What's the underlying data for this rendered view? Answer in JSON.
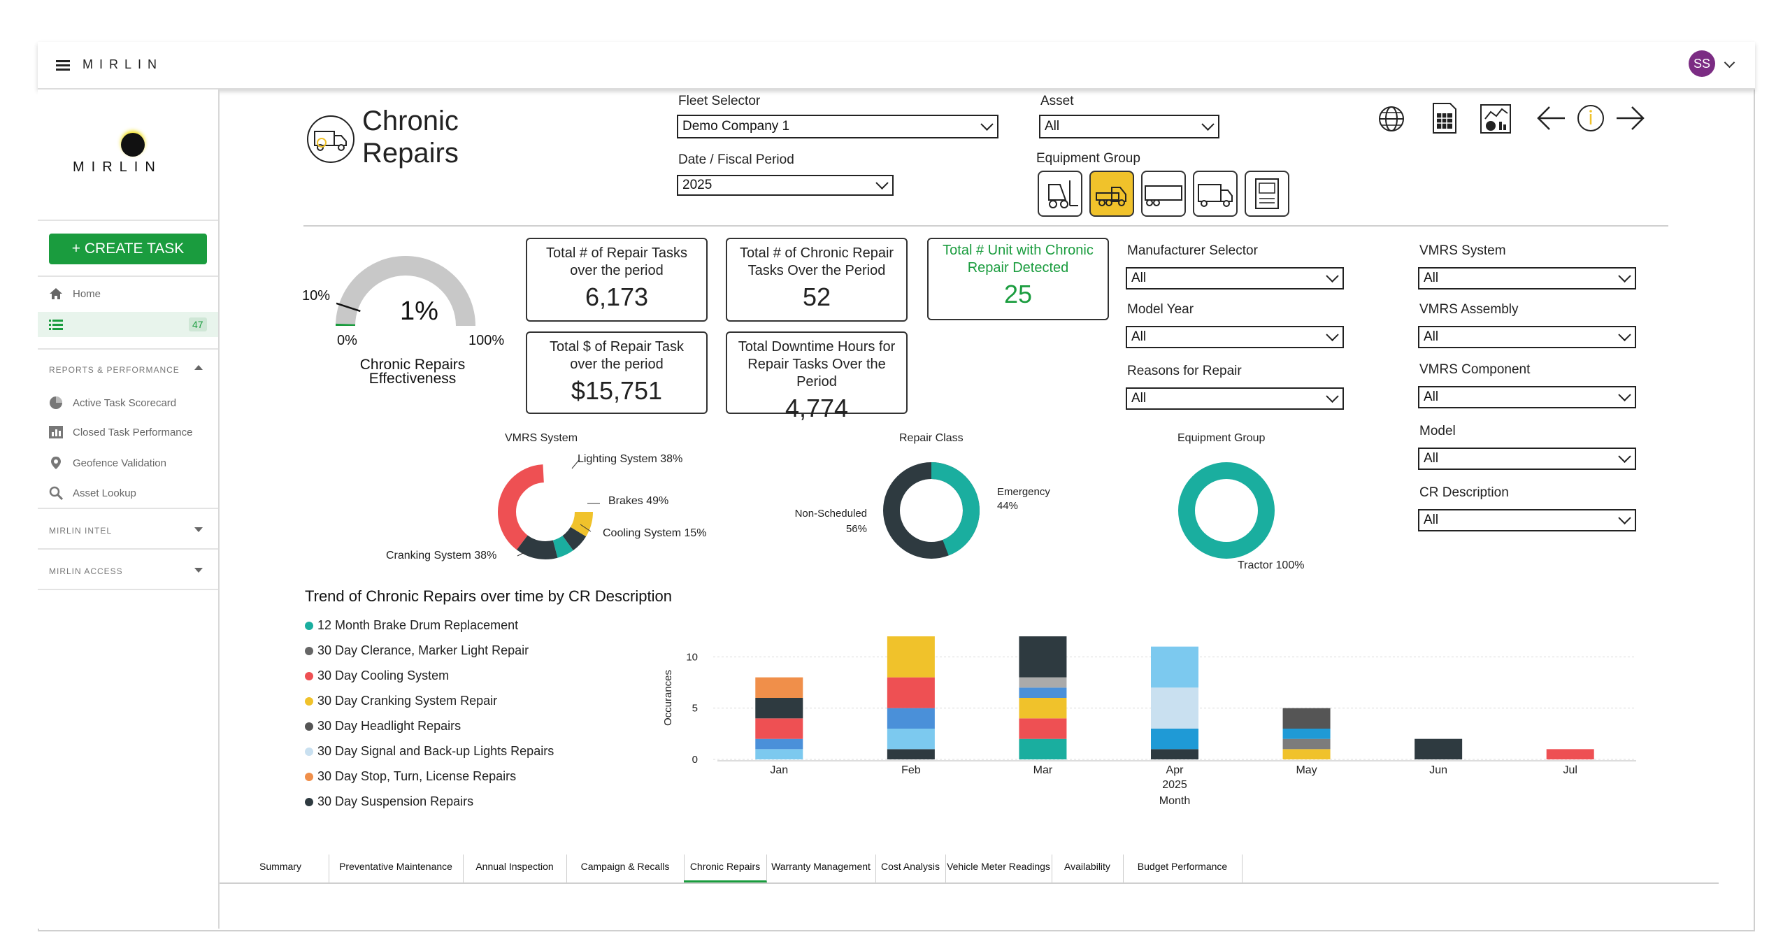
{
  "app": {
    "brand": "MIRLIN",
    "user_initials": "SS",
    "user_color": "#7b2c83"
  },
  "sidebar": {
    "brand": "MIRLIN",
    "create_task": "+ CREATE TASK",
    "home": "Home",
    "list_badge": "47",
    "reports_head": "REPORTS & PERFORMANCE",
    "items": [
      "Active Task Scorecard",
      "Closed Task Performance",
      "Geofence Validation",
      "Asset Lookup"
    ],
    "intel_head": "MIRLIN INTEL",
    "access_head": "MIRLIN ACCESS"
  },
  "page": {
    "title_line1": "Chronic",
    "title_line2": "Repairs"
  },
  "filters": {
    "fleet_label": "Fleet Selector",
    "fleet_value": "Demo Company 1",
    "asset_label": "Asset",
    "asset_value": "All",
    "period_label": "Date / Fiscal Period",
    "period_value": "2025",
    "equip_label": "Equipment Group",
    "manufacturer_label": "Manufacturer Selector",
    "manufacturer_value": "All",
    "model_year_label": "Model Year",
    "model_year_value": "All",
    "reasons_label": "Reasons for Repair",
    "reasons_value": "All",
    "vmrs_system_label": "VMRS System",
    "vmrs_system_value": "All",
    "vmrs_assembly_label": "VMRS Assembly",
    "vmrs_assembly_value": "All",
    "vmrs_component_label": "VMRS Component",
    "vmrs_component_value": "All",
    "model_label": "Model",
    "model_value": "All",
    "cr_desc_label": "CR Description",
    "cr_desc_value": "All"
  },
  "gauge": {
    "value": "1%",
    "min": "0%",
    "max": "100%",
    "target": "10%",
    "fraction": 0.01,
    "target_fraction": 0.1,
    "label_line1": "Chronic Repairs",
    "label_line2": "Effectiveness"
  },
  "kpis": {
    "repair_tasks_title1": "Total # of Repair Tasks",
    "repair_tasks_title2": "over the period",
    "repair_tasks_value": "6,173",
    "chronic_tasks_title1": "Total # of Chronic Repair",
    "chronic_tasks_title2": "Tasks Over the Period",
    "chronic_tasks_value": "52",
    "units_title1": "Total # Unit with Chronic",
    "units_title2": "Repair Detected",
    "units_value": "25",
    "cost_title1": "Total $ of Repair Task",
    "cost_title2": "over the period",
    "cost_value": "$15,751",
    "downtime_title1": "Total Downtime Hours for",
    "downtime_title2": "Repair Tasks Over the Period",
    "downtime_value": "4,774"
  },
  "donuts": {
    "vmrs": {
      "title": "VMRS System",
      "labels": [
        "Lighting System 38%",
        "Brakes 49%",
        "Cooling System 15%",
        "Cranking System 38%"
      ]
    },
    "repair_class": {
      "title": "Repair Class",
      "label_a1": "Emergency",
      "label_a2": "44%",
      "label_b1": "Non-Scheduled",
      "label_b2": "56%"
    },
    "equipment": {
      "title": "Equipment Group",
      "label": "Tractor 100%"
    }
  },
  "trend": {
    "title": "Trend of Chronic Repairs over time by CR Description",
    "legend": [
      {
        "name": "12 Month Brake Drum Replacement",
        "color": "#1aae9f"
      },
      {
        "name": "30 Day Clerance, Marker Light Repair",
        "color": "#666666"
      },
      {
        "name": "30 Day Cooling System",
        "color": "#ee5053"
      },
      {
        "name": "30 Day Cranking System Repair",
        "color": "#f0c22b"
      },
      {
        "name": "30 Day Headlight Repairs",
        "color": "#555555"
      },
      {
        "name": "30 Day Signal and Back-up Lights Repairs",
        "color": "#c9e0f0"
      },
      {
        "name": "30 Day Stop, Turn, License Repairs",
        "color": "#f08f4a"
      },
      {
        "name": "30 Day Suspension Repairs",
        "color": "#2e3a40"
      }
    ],
    "ylabel": "Occurances",
    "xlabel": "Month",
    "year": "2025"
  },
  "chart_data": {
    "type": "bar",
    "stacked": true,
    "categories": [
      "Jan",
      "Feb",
      "Mar",
      "Apr",
      "May",
      "Jun",
      "Jul"
    ],
    "ylabel": "Occurances",
    "xlabel": "Month",
    "ylim": [
      0,
      12
    ],
    "yticks": [
      0,
      5,
      10
    ],
    "series_by_month": [
      [
        {
          "color": "#7cc9ef",
          "v": 1
        },
        {
          "color": "#4a90d9",
          "v": 1
        },
        {
          "color": "#ee5053",
          "v": 2
        },
        {
          "color": "#2e3a40",
          "v": 2
        },
        {
          "color": "#f08f4a",
          "v": 2
        }
      ],
      [
        {
          "color": "#2e3a40",
          "v": 1
        },
        {
          "color": "#7cc9ef",
          "v": 2
        },
        {
          "color": "#4a90d9",
          "v": 2
        },
        {
          "color": "#ee5053",
          "v": 3
        },
        {
          "color": "#f0c22b",
          "v": 4
        }
      ],
      [
        {
          "color": "#1aae9f",
          "v": 2
        },
        {
          "color": "#ee5053",
          "v": 2
        },
        {
          "color": "#f0c22b",
          "v": 2
        },
        {
          "color": "#4a90d9",
          "v": 1
        },
        {
          "color": "#aaaaaa",
          "v": 1
        },
        {
          "color": "#2e3a40",
          "v": 4
        }
      ],
      [
        {
          "color": "#2e3a40",
          "v": 1
        },
        {
          "color": "#1f9ad6",
          "v": 2
        },
        {
          "color": "#c9e0f0",
          "v": 4
        },
        {
          "color": "#7cc9ef",
          "v": 4
        }
      ],
      [
        {
          "color": "#f0c22b",
          "v": 1
        },
        {
          "color": "#7c7c7c",
          "v": 1
        },
        {
          "color": "#1f9ad6",
          "v": 1
        },
        {
          "color": "#555555",
          "v": 2
        }
      ],
      [
        {
          "color": "#2e3a40",
          "v": 2
        }
      ],
      [
        {
          "color": "#ee5053",
          "v": 1
        }
      ]
    ]
  },
  "tabs": [
    "Summary",
    "Preventative Maintenance",
    "Annual Inspection",
    "Campaign & Recalls",
    "Chronic Repairs",
    "Warranty Management",
    "Cost Analysis",
    "Vehicle Meter Readings",
    "Availability",
    "Budget Performance"
  ]
}
